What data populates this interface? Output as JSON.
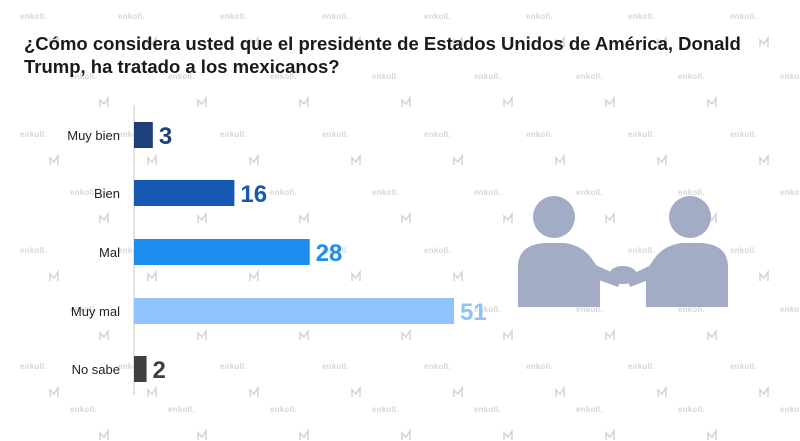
{
  "title": "¿Cómo considera usted que el presidente de Estados Unidos de América, Donald Trump, ha tratado a los mexicanos?",
  "watermark": "enkoll.",
  "illustration_icon": "handshake-icon",
  "chart_data": {
    "type": "bar",
    "orientation": "horizontal",
    "categories": [
      "Muy bien",
      "Bien",
      "Mal",
      "Muy mal",
      "No sabe"
    ],
    "values": [
      3,
      16,
      28,
      51,
      2
    ],
    "colors": [
      "#1f3f7a",
      "#1758b4",
      "#1f8cf0",
      "#8ec4fb",
      "#404040"
    ],
    "title": "",
    "xlabel": "",
    "ylabel": "",
    "xlim": [
      0,
      51
    ],
    "grid": false,
    "legend": "none"
  }
}
